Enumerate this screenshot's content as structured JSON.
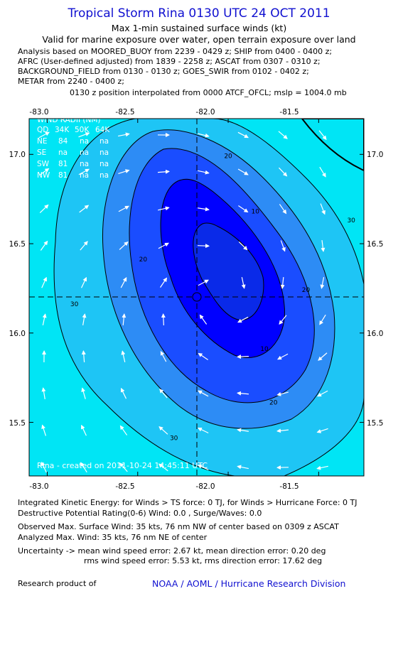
{
  "header": {
    "title": "Tropical Storm Rina 0130 UTC 24 OCT 2011",
    "subtitle1": "Max 1-min sustained surface winds (kt)",
    "subtitle2": "Valid for marine exposure over water, open terrain exposure over land",
    "analysis_lines": [
      "Analysis based on MOORED_BUOY from 2239 - 0429 z; SHIP from 0400 - 0400 z;",
      "AFRC (User-defined adjusted) from 1839 - 2258 z; ASCAT from 0307 - 0310 z;",
      "BACKGROUND_FIELD from 0130 - 0130 z; GOES_SWIR from 0102 - 0402 z;",
      "METAR from 2240 - 0400 z;"
    ],
    "position_note": "0130 z position interpolated from 0000 ATCF_OFCL; mslp = 1004.0 mb"
  },
  "map": {
    "lon_ticks": [
      "-83.0",
      "-82.5",
      "-82.0",
      "-81.5"
    ],
    "lat_ticks": [
      "17.0",
      "16.5",
      "16.0",
      "15.5"
    ],
    "lon_range": [
      -83.1,
      -81.25
    ],
    "lat_range": [
      17.2,
      15.2
    ],
    "center": {
      "lon": -82.05,
      "lat": 16.2
    },
    "contour_labels": [
      {
        "text": "20",
        "lon": -82.0,
        "lat": 16.98
      },
      {
        "text": "10",
        "lon": -81.85,
        "lat": 16.67
      },
      {
        "text": "20",
        "lon": -82.47,
        "lat": 16.4
      },
      {
        "text": "30",
        "lon": -82.85,
        "lat": 16.15
      },
      {
        "text": "20",
        "lon": -81.57,
        "lat": 16.23
      },
      {
        "text": "10",
        "lon": -81.8,
        "lat": 15.9
      },
      {
        "text": "20",
        "lon": -81.75,
        "lat": 15.6
      },
      {
        "text": "30",
        "lon": -82.3,
        "lat": 15.4
      },
      {
        "text": "30",
        "lon": -81.32,
        "lat": 16.62
      }
    ],
    "wind_radii": {
      "header": "WIND RADII (NM)",
      "columns": [
        "QD",
        "34K",
        "50K",
        "64K"
      ],
      "rows": [
        [
          "NE",
          "84",
          "na",
          "na"
        ],
        [
          "SE",
          "na",
          "na",
          "na"
        ],
        [
          "SW",
          "81",
          "na",
          "na"
        ],
        [
          "NW",
          "81",
          "na",
          "na"
        ]
      ]
    },
    "created_note": "Rina - created on 2011-10-24 14:45:11 UTC",
    "colors": {
      "lt30": "#0000ff",
      "b10_20": "#1a4dff",
      "b20_30": "#2d8cf5",
      "b30_40": "#1ec5f5",
      "gt40": "#00e5f5",
      "core": "#0a2ae8"
    }
  },
  "bottom": {
    "lines1": [
      "Integrated Kinetic Energy:  for Winds > TS force: 0 TJ,  for Winds > Hurricane Force: 0 TJ",
      "Destructive Potential Rating(0-6)   Wind: 0.0 , Surge/Waves: 0.0"
    ],
    "lines2": [
      "Observed Max. Surface Wind: 35 kts, 76 nm NW of center based on 0309 z ASCAT",
      "Analyzed Max. Wind: 35 kts, 76 nm NE of center"
    ],
    "uncertainty1": "Uncertainty -> mean wind speed error: 2.67 kt,   mean direction error: 0.20 deg",
    "uncertainty2": "rms wind speed error: 5.53 kt,   rms direction error: 17.62 deg",
    "research_label": "Research product of",
    "org": "NOAA / AOML / Hurricane Research Division"
  }
}
